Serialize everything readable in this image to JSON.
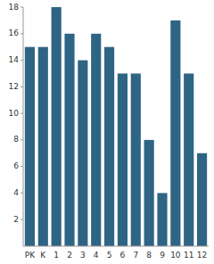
{
  "chart_data": {
    "type": "bar",
    "categories": [
      "PK",
      "K",
      "1",
      "2",
      "3",
      "4",
      "5",
      "6",
      "7",
      "8",
      "9",
      "10",
      "11",
      "12"
    ],
    "values": [
      15,
      15,
      18,
      16,
      14,
      16,
      15,
      13,
      13,
      8,
      4,
      17,
      13,
      7
    ],
    "color": "#2e6484",
    "ylim": [
      0,
      18
    ],
    "yticks": [
      2,
      4,
      6,
      8,
      10,
      12,
      14,
      16,
      18
    ],
    "grid": false
  }
}
